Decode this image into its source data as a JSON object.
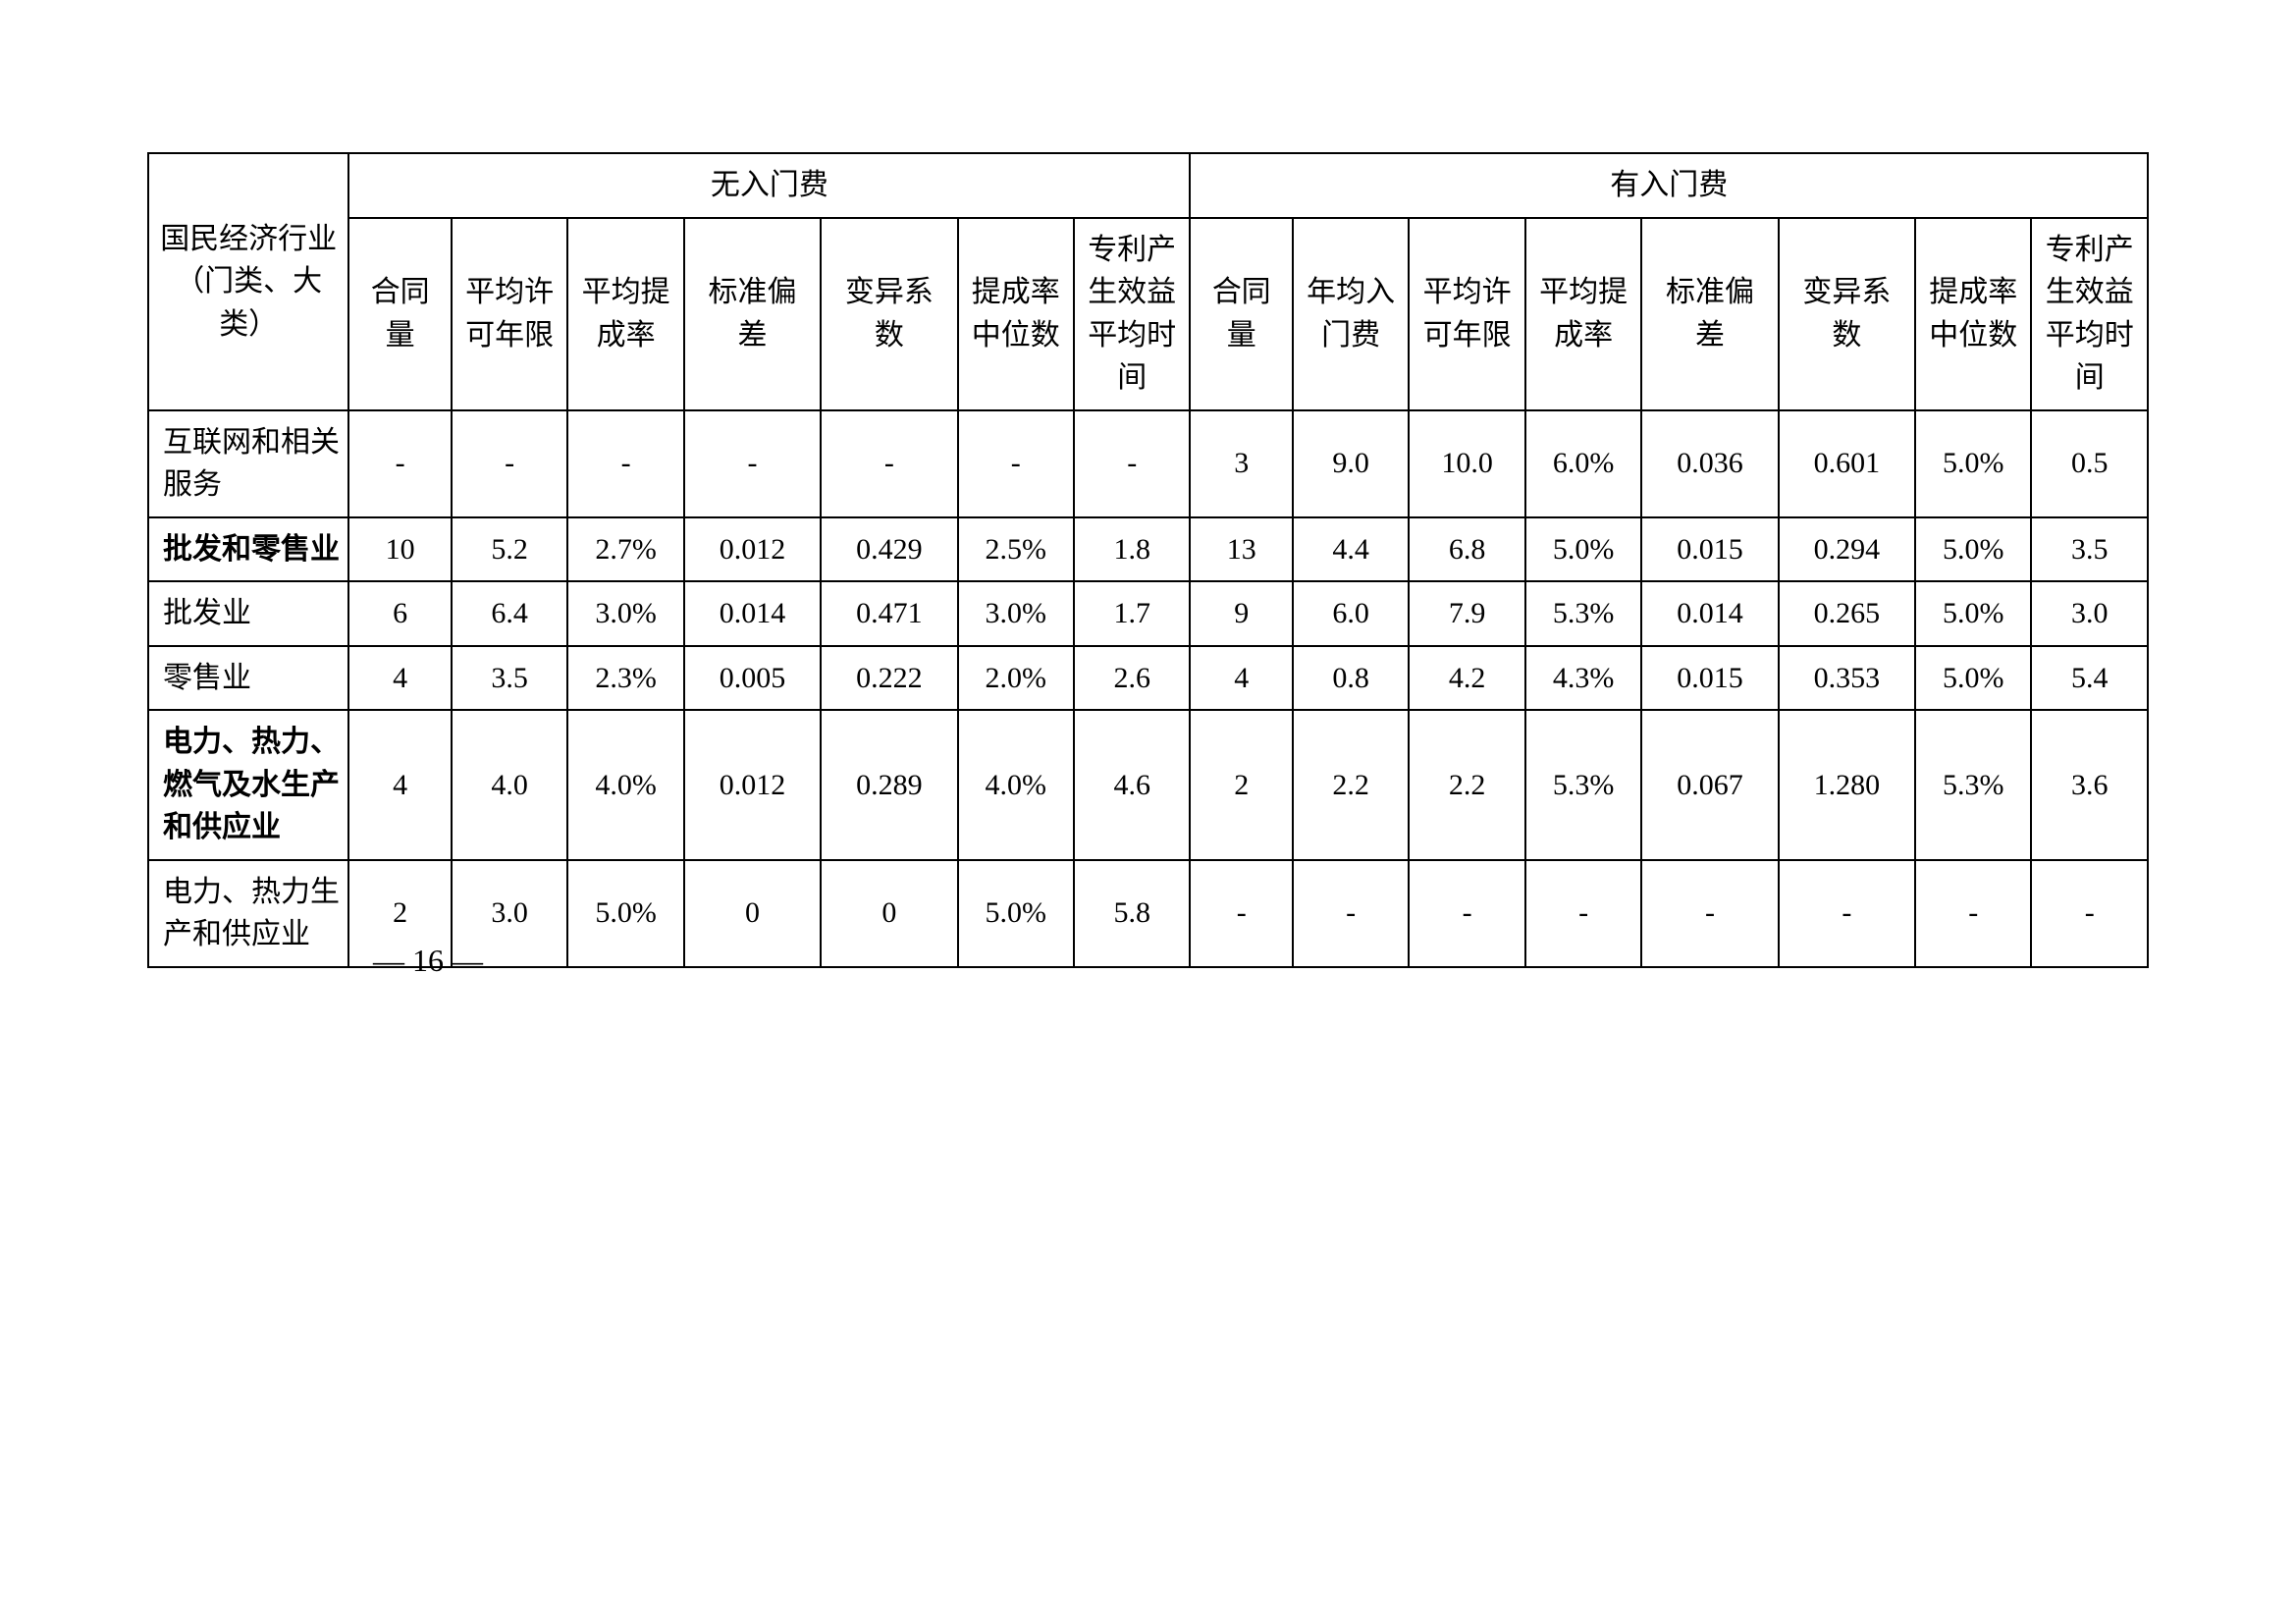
{
  "table": {
    "header": {
      "rowhead": "国民经济行业（门类、大类）",
      "group_no_fee": "无入门费",
      "group_with_fee": "有入门费",
      "no_fee_cols": [
        "合同量",
        "平均许可年限",
        "平均提成率",
        "标准偏差",
        "变异系数",
        "提成率中位数",
        "专利产生效益平均时间"
      ],
      "with_fee_cols": [
        "合同量",
        "年均入门费",
        "平均许可年限",
        "平均提成率",
        "标准偏差",
        "变异系数",
        "提成率中位数",
        "专利产生效益平均时间"
      ]
    },
    "rows": [
      {
        "label": "互联网和相关服务",
        "bold": false,
        "no_fee": [
          "-",
          "-",
          "-",
          "-",
          "-",
          "-",
          "-"
        ],
        "with_fee": [
          "3",
          "9.0",
          "10.0",
          "6.0%",
          "0.036",
          "0.601",
          "5.0%",
          "0.5"
        ]
      },
      {
        "label": "批发和零售业",
        "bold": true,
        "no_fee": [
          "10",
          "5.2",
          "2.7%",
          "0.012",
          "0.429",
          "2.5%",
          "1.8"
        ],
        "with_fee": [
          "13",
          "4.4",
          "6.8",
          "5.0%",
          "0.015",
          "0.294",
          "5.0%",
          "3.5"
        ]
      },
      {
        "label": "批发业",
        "bold": false,
        "no_fee": [
          "6",
          "6.4",
          "3.0%",
          "0.014",
          "0.471",
          "3.0%",
          "1.7"
        ],
        "with_fee": [
          "9",
          "6.0",
          "7.9",
          "5.3%",
          "0.014",
          "0.265",
          "5.0%",
          "3.0"
        ]
      },
      {
        "label": "零售业",
        "bold": false,
        "no_fee": [
          "4",
          "3.5",
          "2.3%",
          "0.005",
          "0.222",
          "2.0%",
          "2.6"
        ],
        "with_fee": [
          "4",
          "0.8",
          "4.2",
          "4.3%",
          "0.015",
          "0.353",
          "5.0%",
          "5.4"
        ]
      },
      {
        "label": "电力、热力、燃气及水生产和供应业",
        "bold": true,
        "no_fee": [
          "4",
          "4.0",
          "4.0%",
          "0.012",
          "0.289",
          "4.0%",
          "4.6"
        ],
        "with_fee": [
          "2",
          "2.2",
          "2.2",
          "5.3%",
          "0.067",
          "1.280",
          "5.3%",
          "3.6"
        ]
      },
      {
        "label": "电力、热力生产和供应业",
        "bold": false,
        "no_fee": [
          "2",
          "3.0",
          "5.0%",
          "0",
          "0",
          "5.0%",
          "5.8"
        ],
        "with_fee": [
          "-",
          "-",
          "-",
          "-",
          "-",
          "-",
          "-",
          "-"
        ]
      }
    ]
  },
  "page_number": "— 16 —",
  "style": {
    "font_family": "SimSun",
    "font_size_pt": 22,
    "border_color": "#000000",
    "text_color": "#000000",
    "background_color": "#ffffff"
  }
}
